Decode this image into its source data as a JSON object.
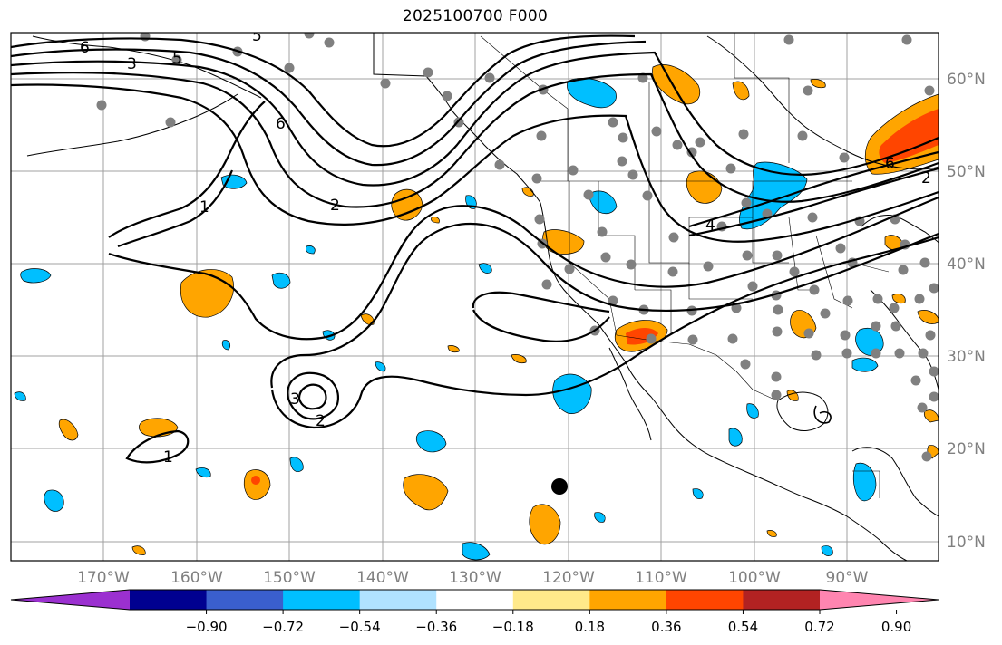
{
  "title": "2025100700 F000",
  "latitude_labels": [
    "60°N",
    "50°N",
    "40°N",
    "30°N",
    "20°N",
    "10°N"
  ],
  "longitude_labels": [
    "170°W",
    "160°W",
    "150°W",
    "140°W",
    "130°W",
    "120°W",
    "110°W",
    "100°W",
    "90°W"
  ],
  "colorbar": {
    "tick_labels": [
      "−0.90",
      "−0.72",
      "−0.54",
      "−0.36",
      "−0.18",
      "0.18",
      "0.36",
      "0.54",
      "0.72",
      "0.90"
    ],
    "colors": [
      "#9b30d0",
      "#000090",
      "#3a5fcd",
      "#00bfff",
      "#b0e2ff",
      "#ffffff",
      "#ffe98a",
      "#ffa500",
      "#ff4500",
      "#b22222",
      "#ff85b0"
    ]
  },
  "contour_labels": [
    "6",
    "5",
    "3",
    "5",
    "6",
    "1",
    "2",
    "3",
    "2",
    "1",
    "4",
    "6",
    "2"
  ],
  "fill_colors": {
    "positive": "#ffa500",
    "positive_strong": "#ff4500",
    "negative": "#00bfff",
    "negative_light": "#b0e2ff",
    "station": "#808080",
    "marker": "#000000"
  }
}
